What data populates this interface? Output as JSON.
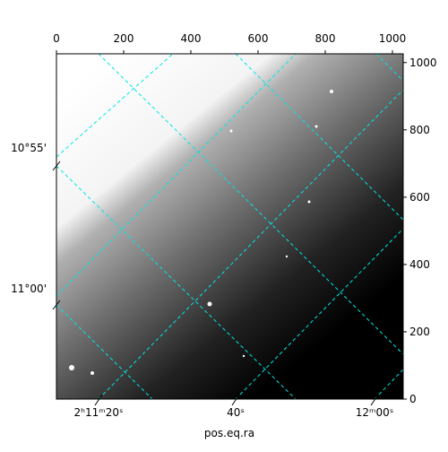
{
  "chart_data": {
    "type": "image",
    "xlabel": "pos.eq.ra",
    "xlim": [
      0,
      1032
    ],
    "xticks": [
      0,
      200,
      400,
      600,
      800,
      1000
    ],
    "ylim": [
      0,
      1026
    ],
    "yticks": [
      0,
      200,
      400,
      600,
      800,
      1000
    ],
    "ra_labels": [
      "2ʰ11ᵐ20ˢ",
      "40ˢ",
      "12ᵐ00ˢ"
    ],
    "dec_labels": [
      "10°55'",
      "11°00'"
    ],
    "grid_color": "#00e5e5"
  }
}
